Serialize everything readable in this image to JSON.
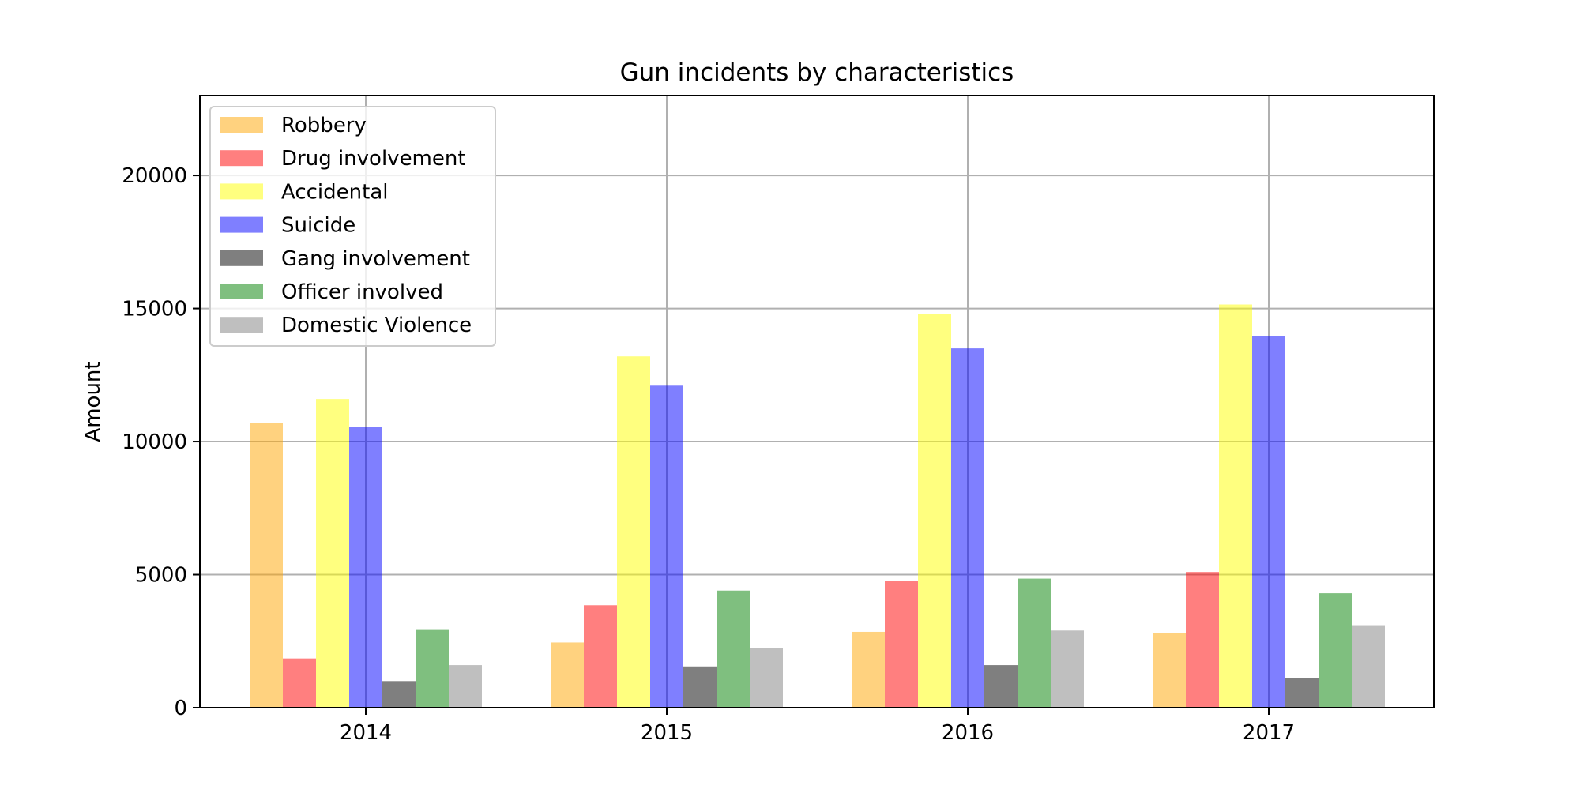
{
  "chart_data": {
    "type": "bar",
    "title": "Gun incidents by characteristics",
    "xlabel": "",
    "ylabel": "Amount",
    "categories": [
      "2014",
      "2015",
      "2016",
      "2017"
    ],
    "ylim": [
      0,
      23000
    ],
    "yticks": [
      0,
      5000,
      10000,
      15000,
      20000
    ],
    "grid": true,
    "legend_position": "top-left",
    "series": [
      {
        "name": "Robbery",
        "color": "#ffa500",
        "values": [
          10700,
          2450,
          2850,
          2800
        ]
      },
      {
        "name": "Drug involvement",
        "color": "#ff0000",
        "values": [
          1850,
          3850,
          4750,
          5100
        ]
      },
      {
        "name": "Accidental",
        "color": "#ffff00",
        "values": [
          11600,
          13200,
          14800,
          15150
        ]
      },
      {
        "name": "Suicide",
        "color": "#0000ff",
        "values": [
          10550,
          12100,
          13500,
          13950
        ]
      },
      {
        "name": "Gang involvement",
        "color": "#000000",
        "values": [
          1000,
          1550,
          1600,
          1100
        ]
      },
      {
        "name": "Officer involved",
        "color": "#008000",
        "values": [
          2950,
          4400,
          4850,
          4300
        ]
      },
      {
        "name": "Domestic Violence",
        "color": "#808080",
        "values": [
          1600,
          2250,
          2900,
          3100
        ]
      }
    ]
  }
}
